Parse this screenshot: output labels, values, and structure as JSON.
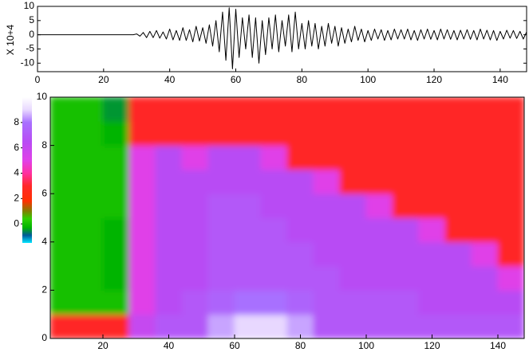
{
  "chart_data": [
    {
      "type": "line",
      "x": [
        0,
        1,
        2,
        3,
        4,
        5,
        6,
        7,
        8,
        9,
        10,
        11,
        12,
        13,
        14,
        15,
        16,
        17,
        18,
        19,
        20,
        21,
        22,
        23,
        24,
        25,
        26,
        27,
        28,
        29,
        30,
        31,
        32,
        33,
        34,
        35,
        36,
        37,
        38,
        39,
        40,
        41,
        42,
        43,
        44,
        45,
        46,
        47,
        48,
        49,
        50,
        51,
        52,
        53,
        54,
        55,
        56,
        57,
        58,
        59,
        60,
        61,
        62,
        63,
        64,
        65,
        66,
        67,
        68,
        69,
        70,
        71,
        72,
        73,
        74,
        75,
        76,
        77,
        78,
        79,
        80,
        81,
        82,
        83,
        84,
        85,
        86,
        87,
        88,
        89,
        90,
        91,
        92,
        93,
        94,
        95,
        96,
        97,
        98,
        99,
        100,
        101,
        102,
        103,
        104,
        105,
        106,
        107,
        108,
        109,
        110,
        111,
        112,
        113,
        114,
        115,
        116,
        117,
        118,
        119,
        120,
        121,
        122,
        123,
        124,
        125,
        126,
        127,
        128,
        129,
        130,
        131,
        132,
        133,
        134,
        135,
        136,
        137,
        138,
        139,
        140,
        141,
        142,
        143,
        144,
        145,
        146,
        147,
        148
      ],
      "values": [
        0,
        0,
        0,
        0,
        0,
        0,
        0,
        0,
        0,
        0,
        0,
        0,
        0,
        0,
        0,
        0,
        0,
        0,
        0,
        0,
        0,
        0,
        0,
        0,
        0,
        0,
        0,
        0,
        0,
        0,
        0.3,
        -0.5,
        0.8,
        -1,
        1.2,
        -1,
        1.5,
        -1.2,
        1,
        -1.5,
        2,
        -1.8,
        1.5,
        -2,
        2.5,
        -2,
        1.8,
        -2.5,
        3,
        -2.2,
        2.5,
        -3,
        3.5,
        -4,
        5,
        -6,
        8,
        -9,
        9.5,
        -12,
        9,
        -8,
        6,
        -5,
        7,
        -8,
        6,
        -10,
        5,
        -7,
        6,
        -5,
        7,
        -6,
        5,
        -4,
        7,
        -6,
        8,
        -5,
        4,
        -5,
        5,
        -4,
        4,
        -5,
        3,
        -4,
        4,
        -3,
        3,
        -4,
        2.5,
        -3,
        2,
        -2.5,
        3,
        -2,
        2,
        -2.5,
        1.5,
        -2,
        2,
        -1.5,
        1.8,
        -2,
        1.5,
        -1.8,
        2,
        -1.5,
        1.8,
        -1.5,
        2,
        -1.8,
        1.5,
        -2,
        1.8,
        -1.5,
        2,
        -1.6,
        1.5,
        -1.8,
        2,
        -1.5,
        1.8,
        -1.6,
        1.5,
        -1.8,
        1.6,
        -1.5,
        1.8,
        -1.6,
        1.5,
        -1.8,
        2,
        -1.5,
        1.6,
        -1.8,
        1.5,
        -2,
        1.2,
        -1.5,
        1.6,
        -1.2,
        1.5,
        -1.3,
        1.2,
        -1.5,
        1
      ],
      "color": "#000000",
      "xlim": [
        0,
        148
      ],
      "ylim": [
        -13,
        10
      ],
      "xticks": [
        0,
        20,
        40,
        60,
        80,
        100,
        120,
        140
      ],
      "yticks": [
        10,
        5,
        0,
        -5,
        -10
      ],
      "ylabel": "X 10+4"
    },
    {
      "type": "heatmap",
      "x_edges": [
        4,
        12,
        20,
        28,
        36,
        44,
        52,
        60,
        68,
        76,
        84,
        92,
        100,
        108,
        116,
        124,
        132,
        140,
        148
      ],
      "y_edges": [
        0,
        1,
        2,
        3,
        4,
        5,
        6,
        7,
        8,
        9,
        10
      ],
      "values": [
        [
          3,
          3,
          3,
          6,
          7,
          7,
          8.5,
          9,
          9,
          8.5,
          7,
          7,
          7,
          7,
          7,
          7,
          7,
          7
        ],
        [
          0,
          0,
          0,
          5,
          6.5,
          7,
          7.5,
          8,
          8,
          7.5,
          7,
          7,
          7,
          7,
          6.5,
          6.5,
          6.5,
          6.5
        ],
        [
          0,
          0,
          -0.3,
          5,
          6.5,
          6.5,
          7,
          7,
          7,
          7,
          7,
          6.5,
          6.5,
          6.5,
          6.5,
          6.5,
          6.5,
          5
        ],
        [
          0,
          0,
          -0.3,
          5,
          6.5,
          6.5,
          7,
          7,
          7,
          7,
          6.5,
          6.5,
          6.5,
          6.5,
          6.5,
          6.5,
          5,
          3
        ],
        [
          0,
          0,
          -0.3,
          5,
          6.5,
          6.5,
          7,
          7,
          7,
          6.5,
          6.5,
          6.5,
          6.5,
          6.5,
          5,
          3,
          3,
          3
        ],
        [
          0,
          0,
          0,
          5,
          6.5,
          6.5,
          7,
          7,
          6.5,
          6.5,
          6.5,
          6.5,
          5,
          3,
          3,
          3,
          3,
          3
        ],
        [
          0,
          0,
          0,
          5,
          6.5,
          6.5,
          6.5,
          6.5,
          6.5,
          6.5,
          5,
          3,
          3,
          3,
          3,
          3,
          3,
          3
        ],
        [
          0,
          0,
          0,
          5,
          6.5,
          5,
          6.5,
          6.5,
          5,
          3,
          3,
          3,
          3,
          3,
          3,
          3,
          3,
          3
        ],
        [
          0,
          0,
          -0.3,
          3,
          3,
          3,
          3,
          3,
          3,
          3,
          3,
          3,
          3,
          3,
          3,
          3,
          3,
          3
        ],
        [
          0,
          0,
          -0.5,
          3,
          3,
          3,
          3,
          3,
          3,
          3,
          3,
          3,
          3,
          3,
          3,
          3,
          3,
          3
        ]
      ],
      "xlim": [
        4,
        148
      ],
      "ylim": [
        0,
        10
      ],
      "xticks": [
        20,
        40,
        60,
        80,
        100,
        120,
        140
      ],
      "yticks": [
        0,
        2,
        4,
        6,
        8,
        10
      ],
      "colorbar": {
        "lim": [
          -1.5,
          10
        ],
        "ticks": [
          0,
          2,
          4,
          6,
          8
        ]
      },
      "colorscale": [
        {
          "value": -1.5,
          "color": "#00e5ff"
        },
        {
          "value": -0.9,
          "color": "#005a9a"
        },
        {
          "value": -0.3,
          "color": "#00b400"
        },
        {
          "value": 0.4,
          "color": "#30d000"
        },
        {
          "value": 1.0,
          "color": "#808000"
        },
        {
          "value": 1.8,
          "color": "#ff3000"
        },
        {
          "value": 3,
          "color": "#ff2828"
        },
        {
          "value": 4,
          "color": "#ff30a0"
        },
        {
          "value": 5,
          "color": "#e040e8"
        },
        {
          "value": 6.5,
          "color": "#b84cf4"
        },
        {
          "value": 8,
          "color": "#a870ff"
        },
        {
          "value": 9,
          "color": "#e8d8ff"
        },
        {
          "value": 10,
          "color": "#ffffff"
        }
      ]
    }
  ]
}
